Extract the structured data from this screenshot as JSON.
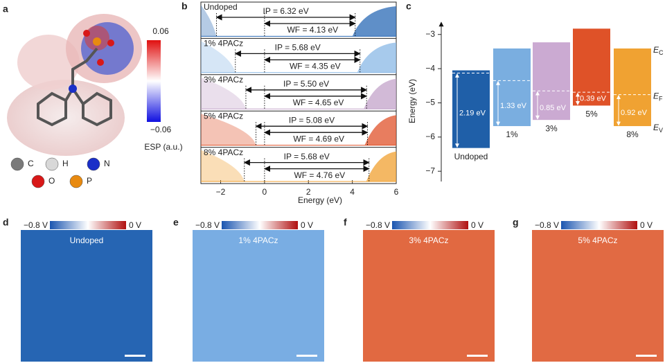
{
  "panel_labels": [
    "a",
    "b",
    "c",
    "d",
    "e",
    "f",
    "g"
  ],
  "panel_a": {
    "colorbar": {
      "max": "0.06",
      "min": "−0.06",
      "label": "ESP (a.u.)"
    },
    "atoms": [
      {
        "symbol": "C",
        "color": "#7a7a7a"
      },
      {
        "symbol": "H",
        "color": "#d8d8d8"
      },
      {
        "symbol": "N",
        "color": "#1a2fc8"
      },
      {
        "symbol": "O",
        "color": "#d81818"
      },
      {
        "symbol": "P",
        "color": "#e88a10"
      }
    ]
  },
  "panel_b": {
    "xlabel": "Energy (eV)",
    "xlim": [
      -2.9,
      6
    ],
    "xticks": [
      {
        "value": -2,
        "label": "−2"
      },
      0,
      2,
      4,
      6
    ],
    "rows": [
      {
        "label": "Undoped",
        "ip": 6.32,
        "wf": 4.13,
        "ip_label": "IP = 6.32 eV",
        "wf_label": "WF = 4.13 eV",
        "color": "#2a6ab5"
      },
      {
        "label": "1% 4PACz",
        "ip": 5.68,
        "wf": 4.35,
        "ip_label": "IP = 5.68 eV",
        "wf_label": "WF = 4.35 eV",
        "color": "#8ab8e6"
      },
      {
        "label": "3% 4PACz",
        "ip": 5.5,
        "wf": 4.65,
        "ip_label": "IP = 5.50 eV",
        "wf_label": "WF = 4.65 eV",
        "color": "#c3a3c9"
      },
      {
        "label": "5% 4PACz",
        "ip": 5.08,
        "wf": 4.69,
        "ip_label": "IP = 5.08 eV",
        "wf_label": "WF = 4.69 eV",
        "color": "#e0522a"
      },
      {
        "label": "8% 4PACz",
        "ip": 5.68,
        "wf": 4.76,
        "ip_label": "IP = 5.68 eV",
        "wf_label": "WF = 4.76 eV",
        "color": "#f0a030"
      }
    ]
  },
  "panel_c": {
    "ylabel": "Energy (eV)",
    "ylim": [
      -7.3,
      -2.6
    ],
    "yticks": [
      {
        "value": -3,
        "label": "−3"
      },
      {
        "value": -4,
        "label": "−4"
      },
      {
        "value": -5,
        "label": "−5"
      },
      {
        "value": -6,
        "label": "−6"
      },
      {
        "value": -7,
        "label": "−7"
      }
    ],
    "bars": [
      {
        "name": "Undoped",
        "cbm": -4.05,
        "vbm": -6.32,
        "fermi": -4.13,
        "gap_label": "2.19 eV",
        "color": "#1f5fa8"
      },
      {
        "name": "1%",
        "cbm": -3.41,
        "vbm": -5.68,
        "fermi": -4.35,
        "gap_label": "1.33 eV",
        "color": "#7aaee0"
      },
      {
        "name": "3%",
        "cbm": -3.23,
        "vbm": -5.5,
        "fermi": -4.65,
        "gap_label": "0.85 eV",
        "color": "#cbaad2"
      },
      {
        "name": "5%",
        "cbm": -2.83,
        "vbm": -5.08,
        "fermi": -4.69,
        "gap_label": "0.39 eV",
        "color": "#df5228"
      },
      {
        "name": "8%",
        "cbm": -3.41,
        "vbm": -5.68,
        "fermi": -4.76,
        "gap_label": "0.92 eV",
        "color": "#f0a232"
      }
    ],
    "level_labels": [
      {
        "symbol": "E",
        "sub": "C"
      },
      {
        "symbol": "E",
        "sub": "F"
      },
      {
        "symbol": "E",
        "sub": "V"
      }
    ]
  },
  "map_colorbar": {
    "min": "−0.8 V",
    "max": "0 V"
  },
  "maps": [
    {
      "label": "Undoped",
      "color": "#1e5fb0"
    },
    {
      "label": "1% 4PACz",
      "color": "#74aae2"
    },
    {
      "label": "3% 4PACz",
      "color": "#e0633a"
    },
    {
      "label": "5% 4PACz",
      "color": "#e0643c"
    }
  ]
}
